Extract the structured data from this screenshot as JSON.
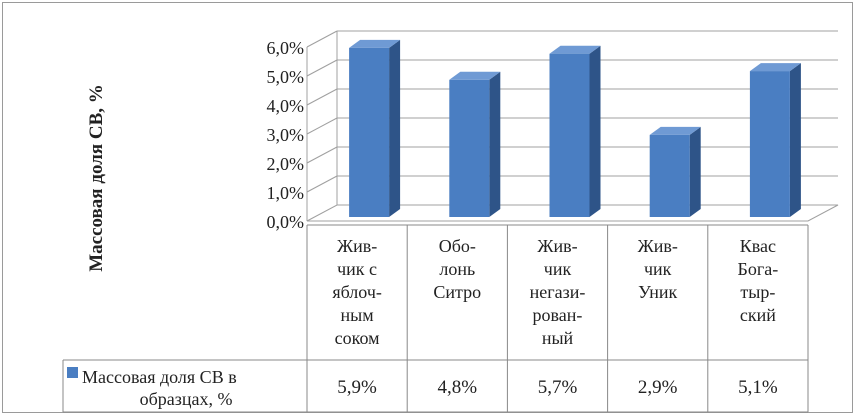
{
  "chart_data": {
    "type": "bar",
    "ylabel": "Массовая доля СВ, %",
    "ylim": [
      0,
      6
    ],
    "y_ticks": [
      "0,0%",
      "1,0%",
      "2,0%",
      "3,0%",
      "4,0%",
      "5,0%",
      "6,0%"
    ],
    "categories": [
      [
        "Жив-",
        "чик с",
        "яблоч-",
        "ным",
        "соком"
      ],
      [
        "Обо-",
        "лонь",
        "Ситро"
      ],
      [
        "Жив-",
        "чик",
        "негази-",
        "рован-",
        "ный"
      ],
      [
        "Жив-",
        "чик",
        "Уник"
      ],
      [
        "Квас",
        "Бога-",
        "тыр-",
        "ский"
      ]
    ],
    "series": [
      {
        "name": [
          "Массовая доля СВ в",
          "образцах, %"
        ],
        "values": [
          5.9,
          4.8,
          5.7,
          2.9,
          5.1
        ],
        "value_labels": [
          "5,9%",
          "4,8%",
          "5,7%",
          "2,9%",
          "5,1%"
        ]
      }
    ],
    "colors": {
      "bar_front": "#4a7ec2",
      "bar_side": "#2e5488",
      "bar_top": "#6f9ad4",
      "grid": "#a0a0a0"
    },
    "grid": true,
    "legend": "data-table"
  }
}
